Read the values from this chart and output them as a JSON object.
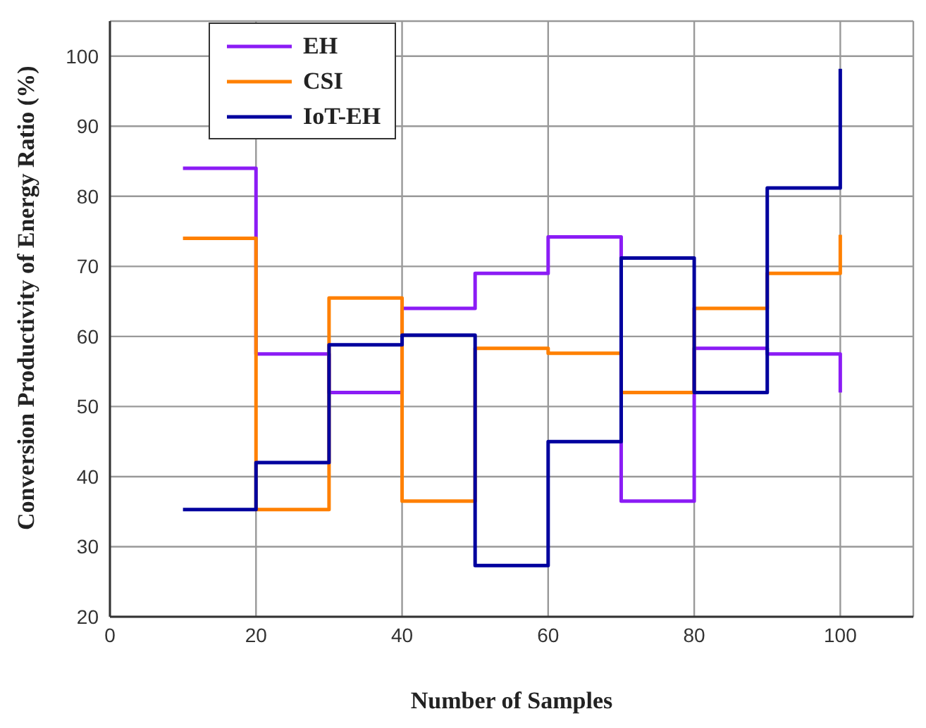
{
  "chart_data": {
    "type": "step",
    "xlabel": "Number of Samples",
    "ylabel": "Conversion Productivity of Energy Ratio (%)",
    "x": [
      10,
      20,
      30,
      40,
      50,
      60,
      70,
      80,
      90,
      100
    ],
    "series": [
      {
        "name": "EH",
        "color": "#8b1cf5",
        "values": [
          84,
          57.5,
          52,
          64,
          69,
          74.2,
          36.5,
          58.3,
          57.5,
          52
        ]
      },
      {
        "name": "CSI",
        "color": "#ff8000",
        "values": [
          74,
          35.3,
          65.5,
          36.5,
          58.3,
          57.6,
          52,
          64,
          69,
          74.5
        ]
      },
      {
        "name": "IoT-EH",
        "color": "#00009e",
        "values": [
          35.3,
          42,
          58.8,
          60.2,
          27.3,
          45,
          71.2,
          52,
          81.2,
          98.2
        ]
      }
    ],
    "xlim": [
      0,
      110
    ],
    "xticks": [
      0,
      20,
      40,
      60,
      80,
      100
    ],
    "ylim": [
      20,
      105
    ],
    "yticks": [
      20,
      30,
      40,
      50,
      60,
      70,
      80,
      90,
      100
    ],
    "grid": true,
    "legend": "top left",
    "marker": "none",
    "line_style": "solid"
  }
}
